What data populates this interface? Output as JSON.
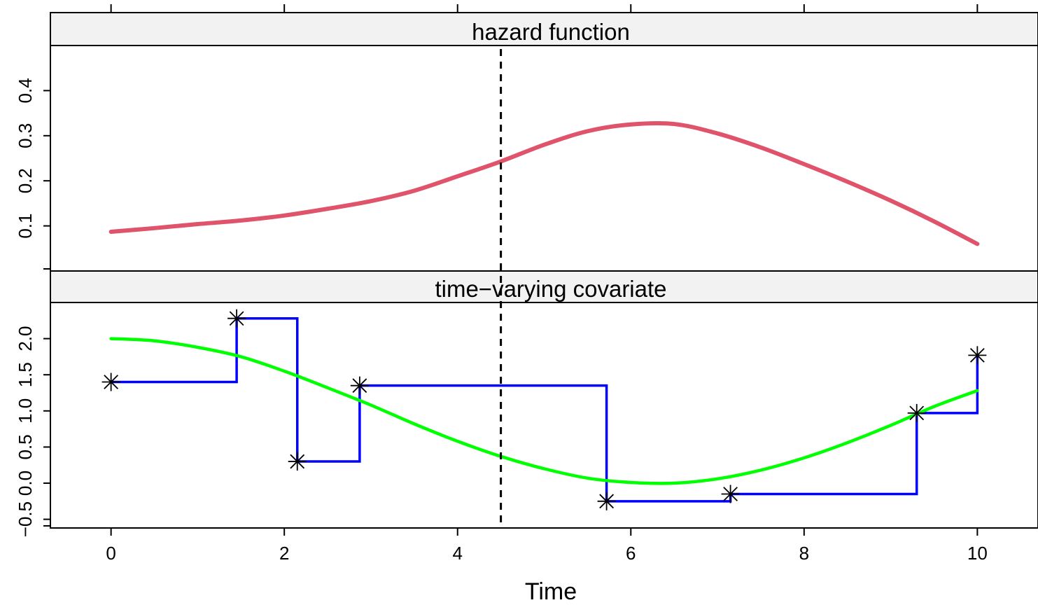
{
  "chart_data": [
    {
      "type": "line",
      "title": "hazard function",
      "xlabel": "Time",
      "ylabel": "",
      "xlim": [
        -0.7,
        10.7
      ],
      "ylim": [
        0.0,
        0.5
      ],
      "yticks": [
        0.1,
        0.2,
        0.3,
        0.4
      ],
      "ytick_labels": [
        "0.1",
        "0.2",
        "0.3",
        "0.4"
      ],
      "reference_line": {
        "x": 4.5,
        "style": "dashed"
      },
      "series": [
        {
          "color": "#DF536B",
          "x": [
            0,
            0.5,
            1,
            1.5,
            2,
            2.5,
            3,
            3.5,
            4,
            4.5,
            5,
            5.5,
            6,
            6.5,
            7,
            7.5,
            8,
            8.5,
            9,
            9.5,
            10
          ],
          "y": [
            0.087,
            0.095,
            0.104,
            0.112,
            0.123,
            0.138,
            0.155,
            0.178,
            0.21,
            0.243,
            0.28,
            0.31,
            0.325,
            0.326,
            0.305,
            0.274,
            0.237,
            0.198,
            0.156,
            0.11,
            0.06
          ]
        }
      ]
    },
    {
      "type": "line",
      "title": "time−varying covariate",
      "xlabel": "Time",
      "ylabel": "",
      "xlim": [
        -0.7,
        10.7
      ],
      "ylim": [
        -0.62,
        2.5
      ],
      "yticks": [
        -0.5,
        0.0,
        0.5,
        1.0,
        1.5,
        2.0
      ],
      "ytick_labels": [
        "−0.5",
        "0.0",
        "0.5",
        "1.0",
        "1.5",
        "2.0"
      ],
      "xticks": [
        0,
        2,
        4,
        6,
        8,
        10
      ],
      "xtick_labels": [
        "0",
        "2",
        "4",
        "6",
        "8",
        "10"
      ],
      "reference_line": {
        "x": 4.5,
        "style": "dashed"
      },
      "series": [
        {
          "kind": "step",
          "color": "#0000FF",
          "marker": "asterisk",
          "x": [
            0,
            1.45,
            2.15,
            2.87,
            5.72,
            7.15,
            9.3,
            10.0
          ],
          "y": [
            1.4,
            2.28,
            0.3,
            1.35,
            -0.25,
            -0.15,
            0.97,
            1.77
          ]
        },
        {
          "kind": "smooth",
          "color": "#00FF00",
          "x": [
            0,
            0.5,
            1,
            1.5,
            2,
            2.5,
            3,
            3.5,
            4,
            4.5,
            5,
            5.5,
            6,
            6.5,
            7,
            7.5,
            8,
            8.5,
            9,
            9.5,
            10
          ],
          "y": [
            2.0,
            1.97,
            1.88,
            1.75,
            1.55,
            1.32,
            1.08,
            0.82,
            0.58,
            0.37,
            0.2,
            0.07,
            0.01,
            0.0,
            0.06,
            0.18,
            0.35,
            0.56,
            0.8,
            1.06,
            1.28
          ]
        }
      ]
    }
  ]
}
